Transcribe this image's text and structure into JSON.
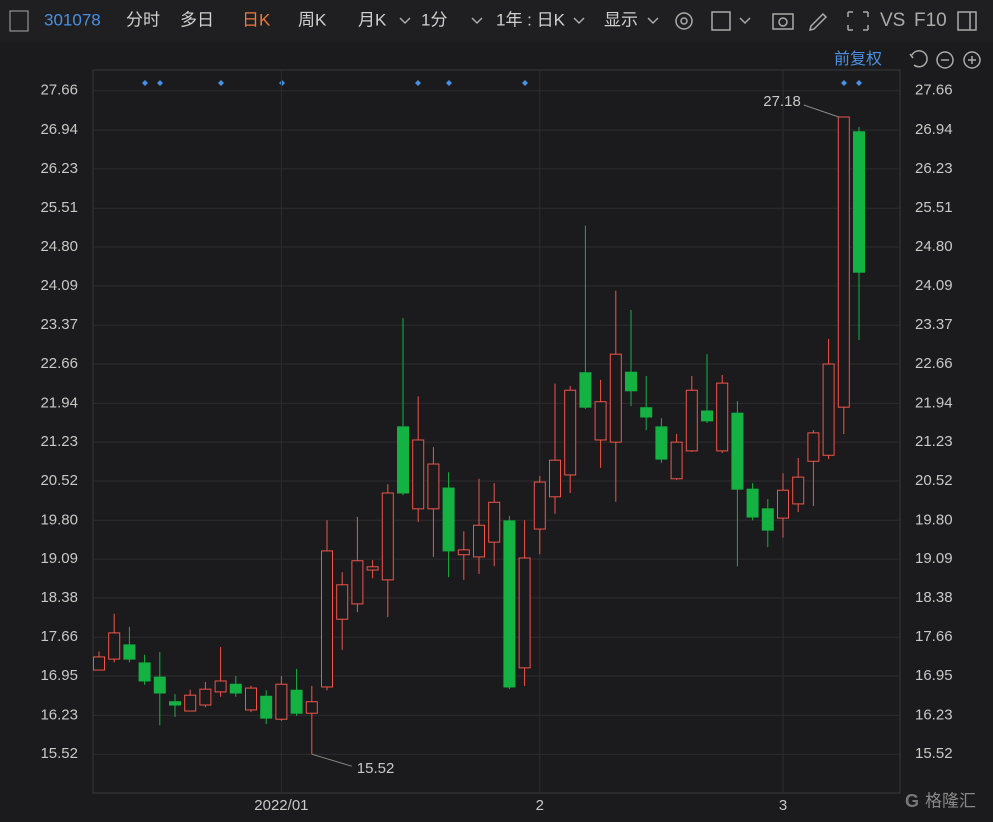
{
  "toolbar": {
    "code": "301078",
    "tabs": [
      "分时",
      "多日",
      "日K",
      "周K",
      "月K",
      "1分",
      "1年 : 日K",
      "显示"
    ],
    "right": [
      "VS",
      "F10"
    ]
  },
  "adjust": "前复权",
  "watermark": "格隆汇",
  "chart_data": {
    "type": "candlestick",
    "categories": [
      null,
      null,
      null,
      null,
      null,
      null,
      null,
      null,
      null,
      null,
      null,
      null,
      "2022/01",
      null,
      null,
      null,
      null,
      null,
      null,
      null,
      null,
      null,
      null,
      null,
      null,
      null,
      null,
      null,
      null,
      "2",
      null,
      null,
      null,
      null,
      null,
      null,
      null,
      null,
      null,
      null,
      null,
      null,
      null,
      null,
      null,
      "3",
      null,
      null,
      null,
      null,
      null
    ],
    "open": [
      17.06,
      17.26,
      17.52,
      17.19,
      16.93,
      16.48,
      16.31,
      16.42,
      16.66,
      16.8,
      16.33,
      16.58,
      16.16,
      16.69,
      16.27,
      16.75,
      17.99,
      18.27,
      18.89,
      18.71,
      21.51,
      20.01,
      20.01,
      20.39,
      19.17,
      19.13,
      19.4,
      19.79,
      17.1,
      19.64,
      20.23,
      20.63,
      22.5,
      21.27,
      21.23,
      22.51,
      21.86,
      21.51,
      20.56,
      21.07,
      21.8,
      21.07,
      21.76,
      20.37,
      20.01,
      19.84,
      20.1,
      20.88,
      20.99,
      21.87,
      26.91
    ],
    "close": [
      17.3,
      17.74,
      17.26,
      16.86,
      16.64,
      16.42,
      16.6,
      16.71,
      16.86,
      16.64,
      16.73,
      16.18,
      16.8,
      16.27,
      16.48,
      19.24,
      18.62,
      19.06,
      18.95,
      20.3,
      20.3,
      21.27,
      20.83,
      19.24,
      19.26,
      19.71,
      20.13,
      16.75,
      19.11,
      20.5,
      20.9,
      22.18,
      21.87,
      21.97,
      22.84,
      22.17,
      21.69,
      20.92,
      21.23,
      22.18,
      21.62,
      22.31,
      20.37,
      19.86,
      19.62,
      20.35,
      20.59,
      21.4,
      22.66,
      27.18,
      24.34
    ],
    "low": [
      17.06,
      17.2,
      17.2,
      16.79,
      16.05,
      16.2,
      16.31,
      16.38,
      16.57,
      16.57,
      16.29,
      16.07,
      16.13,
      16.22,
      15.52,
      16.69,
      17.43,
      18.12,
      18.74,
      18.03,
      20.26,
      19.77,
      19.13,
      18.76,
      18.71,
      18.82,
      18.96,
      16.71,
      16.77,
      19.18,
      19.92,
      20.3,
      21.84,
      20.76,
      20.14,
      21.89,
      21.45,
      20.85,
      20.54,
      21.05,
      21.58,
      21.03,
      18.96,
      19.8,
      19.31,
      19.48,
      19.95,
      20.06,
      20.92,
      21.38,
      23.1
    ],
    "high": [
      17.4,
      18.09,
      17.85,
      17.34,
      17.39,
      16.62,
      16.7,
      16.84,
      17.48,
      16.95,
      16.77,
      16.69,
      16.95,
      17.08,
      16.77,
      19.8,
      18.85,
      19.86,
      19.07,
      20.46,
      23.5,
      22.07,
      21.14,
      20.68,
      19.6,
      20.56,
      20.48,
      19.88,
      19.8,
      20.61,
      22.3,
      22.26,
      25.19,
      22.37,
      24.0,
      23.65,
      22.44,
      21.67,
      21.38,
      22.44,
      22.84,
      22.46,
      21.98,
      20.48,
      20.19,
      20.66,
      20.94,
      21.45,
      23.12,
      27.18,
      27.0
    ],
    "up_color": "#f0544a",
    "down_color": "#14b143",
    "max_label": "27.18",
    "min_label": "15.52",
    "ylim": [
      14.81,
      28.04
    ],
    "yticks": [
      15.52,
      16.23,
      16.95,
      17.66,
      18.38,
      19.09,
      {
        "value": 19.8,
        "label": "19.80"
      },
      20.52,
      21.23,
      21.94,
      22.66,
      23.37,
      24.09,
      {
        "value": 24.8,
        "label": "24.80"
      },
      25.51,
      26.23,
      26.94,
      27.66
    ],
    "grid": true
  }
}
